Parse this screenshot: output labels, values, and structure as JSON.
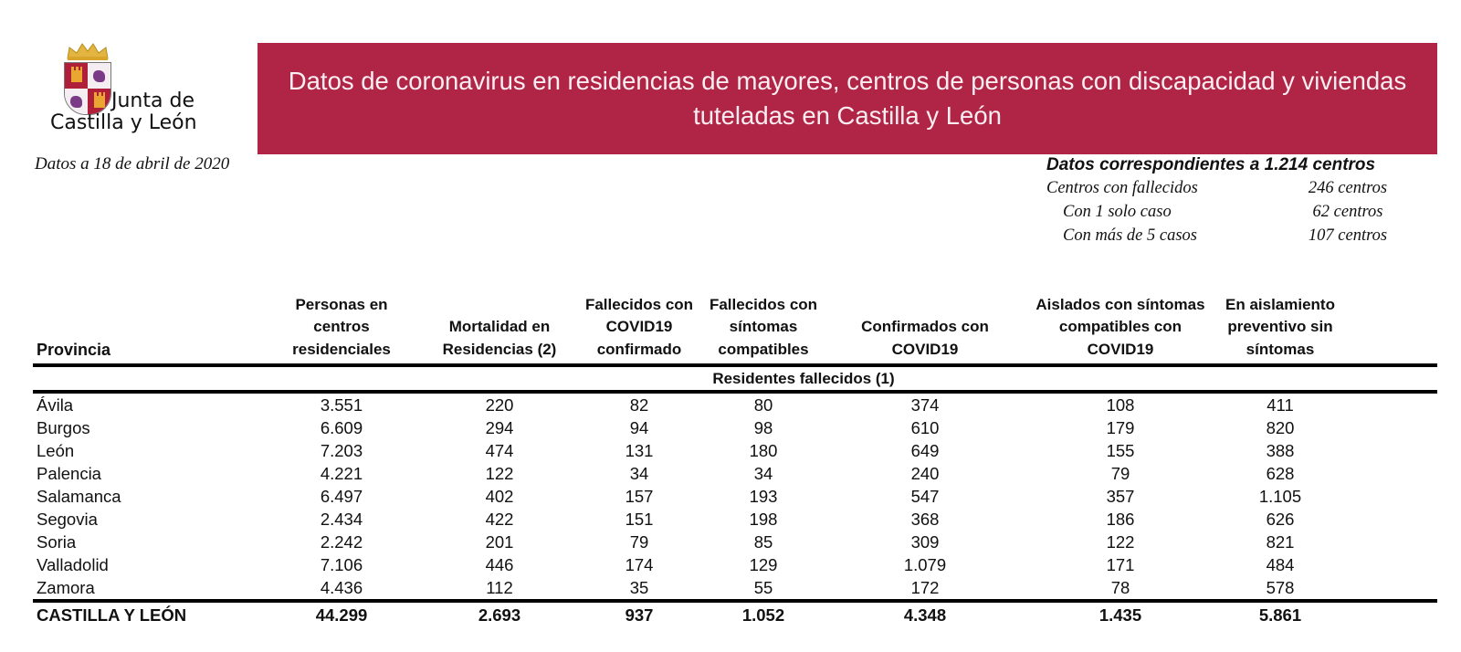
{
  "logo": {
    "line1": "Junta de",
    "line2": "Castilla y León"
  },
  "date_note": "Datos a 18 de abril de 2020",
  "banner": {
    "title": "Datos de coronavirus en residencias de mayores, centros de personas con discapacidad y viviendas tuteladas en Castilla y León",
    "color": "#b02545"
  },
  "summary": {
    "heading": "Datos correspondientes a 1.214 centros",
    "rows": [
      {
        "label": "Centros con fallecidos",
        "value": "246 centros"
      },
      {
        "label": "Con 1 solo caso",
        "value": "62 centros"
      },
      {
        "label": "Con más de 5 casos",
        "value": "107 centros"
      }
    ]
  },
  "table": {
    "headers": [
      "Provincia",
      "Personas en centros residenciales",
      "Mortalidad en Residencias (2)",
      "Fallecidos con COVID19 confirmado",
      "Fallecidos con síntomas compatibles",
      "Confirmados con COVID19",
      "Aislados con síntomas compatibles con COVID19",
      "En aislamiento preventivo sin síntomas"
    ],
    "header_lines": [
      [
        "Provincia"
      ],
      [
        "Personas en",
        "centros",
        "residenciales"
      ],
      [
        "Mortalidad en",
        "Residencias (2)"
      ],
      [
        "Fallecidos con",
        "COVID19",
        "confirmado"
      ],
      [
        "Fallecidos con",
        "síntomas",
        "compatibles"
      ],
      [
        "Confirmados con",
        "COVID19"
      ],
      [
        "Aislados con síntomas",
        "compatibles con",
        "COVID19"
      ],
      [
        "En aislamiento",
        "preventivo sin",
        "síntomas"
      ]
    ],
    "subheader": "Residentes fallecidos (1)",
    "rows": [
      [
        "Ávila",
        "3.551",
        "220",
        "82",
        "80",
        "374",
        "108",
        "411"
      ],
      [
        "Burgos",
        "6.609",
        "294",
        "94",
        "98",
        "610",
        "179",
        "820"
      ],
      [
        "León",
        "7.203",
        "474",
        "131",
        "180",
        "649",
        "155",
        "388"
      ],
      [
        "Palencia",
        "4.221",
        "122",
        "34",
        "34",
        "240",
        "79",
        "628"
      ],
      [
        "Salamanca",
        "6.497",
        "402",
        "157",
        "193",
        "547",
        "357",
        "1.105"
      ],
      [
        "Segovia",
        "2.434",
        "422",
        "151",
        "198",
        "368",
        "186",
        "626"
      ],
      [
        "Soria",
        "2.242",
        "201",
        "79",
        "85",
        "309",
        "122",
        "821"
      ],
      [
        "Valladolid",
        "7.106",
        "446",
        "174",
        "129",
        "1.079",
        "171",
        "484"
      ],
      [
        "Zamora",
        "4.436",
        "112",
        "35",
        "55",
        "172",
        "78",
        "578"
      ]
    ],
    "total": [
      "CASTILLA Y LEÓN",
      "44.299",
      "2.693",
      "937",
      "1.052",
      "4.348",
      "1.435",
      "5.861"
    ]
  }
}
